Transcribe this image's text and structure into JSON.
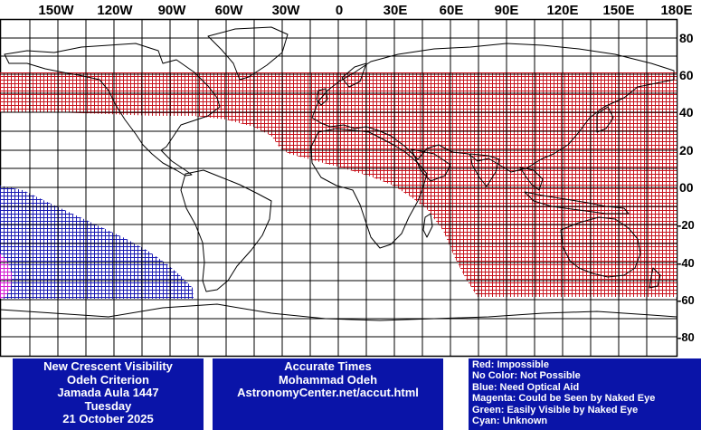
{
  "map": {
    "longitude_labels": [
      "150W",
      "120W",
      "90W",
      "60W",
      "30W",
      "0",
      "30E",
      "60E",
      "90E",
      "120E",
      "150E",
      "180E"
    ],
    "latitude_labels": [
      "80",
      "60",
      "40",
      "20",
      "00",
      "-20",
      "-40",
      "-60",
      "-80"
    ],
    "grid_interval_degrees": 15,
    "visibility_zones": [
      {
        "category": "Impossible",
        "color": "#c8141e",
        "description": "Red hatched band covering the Americas' north, Europe, Africa, Asia and Australia"
      },
      {
        "category": "Need Optical Aid",
        "color": "#1a1ab4",
        "description": "Blue hatched area over the southeastern Pacific"
      },
      {
        "category": "Could be Seen by Naked Eye",
        "color": "#d21ed2",
        "description": "Small magenta area at the western edge of the Pacific zone"
      }
    ]
  },
  "info_left": {
    "lines": [
      "New Crescent Visibility",
      "Odeh Criterion",
      "Jamada Aula 1447",
      "Tuesday",
      "21 October 2025"
    ]
  },
  "info_center": {
    "lines": [
      "Accurate Times",
      "Mohammad Odeh",
      "AstronomyCenter.net/accut.html"
    ]
  },
  "legend": {
    "lines": [
      "Red: Impossible",
      "No Color: Not Possible",
      "Blue: Need Optical Aid",
      "Magenta: Could be Seen by Naked Eye",
      "Green: Easily Visible by Naked Eye",
      "Cyan: Unknown"
    ]
  },
  "colors": {
    "panel_background": "#0a14a8",
    "panel_text": "#ffffff",
    "grid": "#000000",
    "coastline": "#000000"
  }
}
